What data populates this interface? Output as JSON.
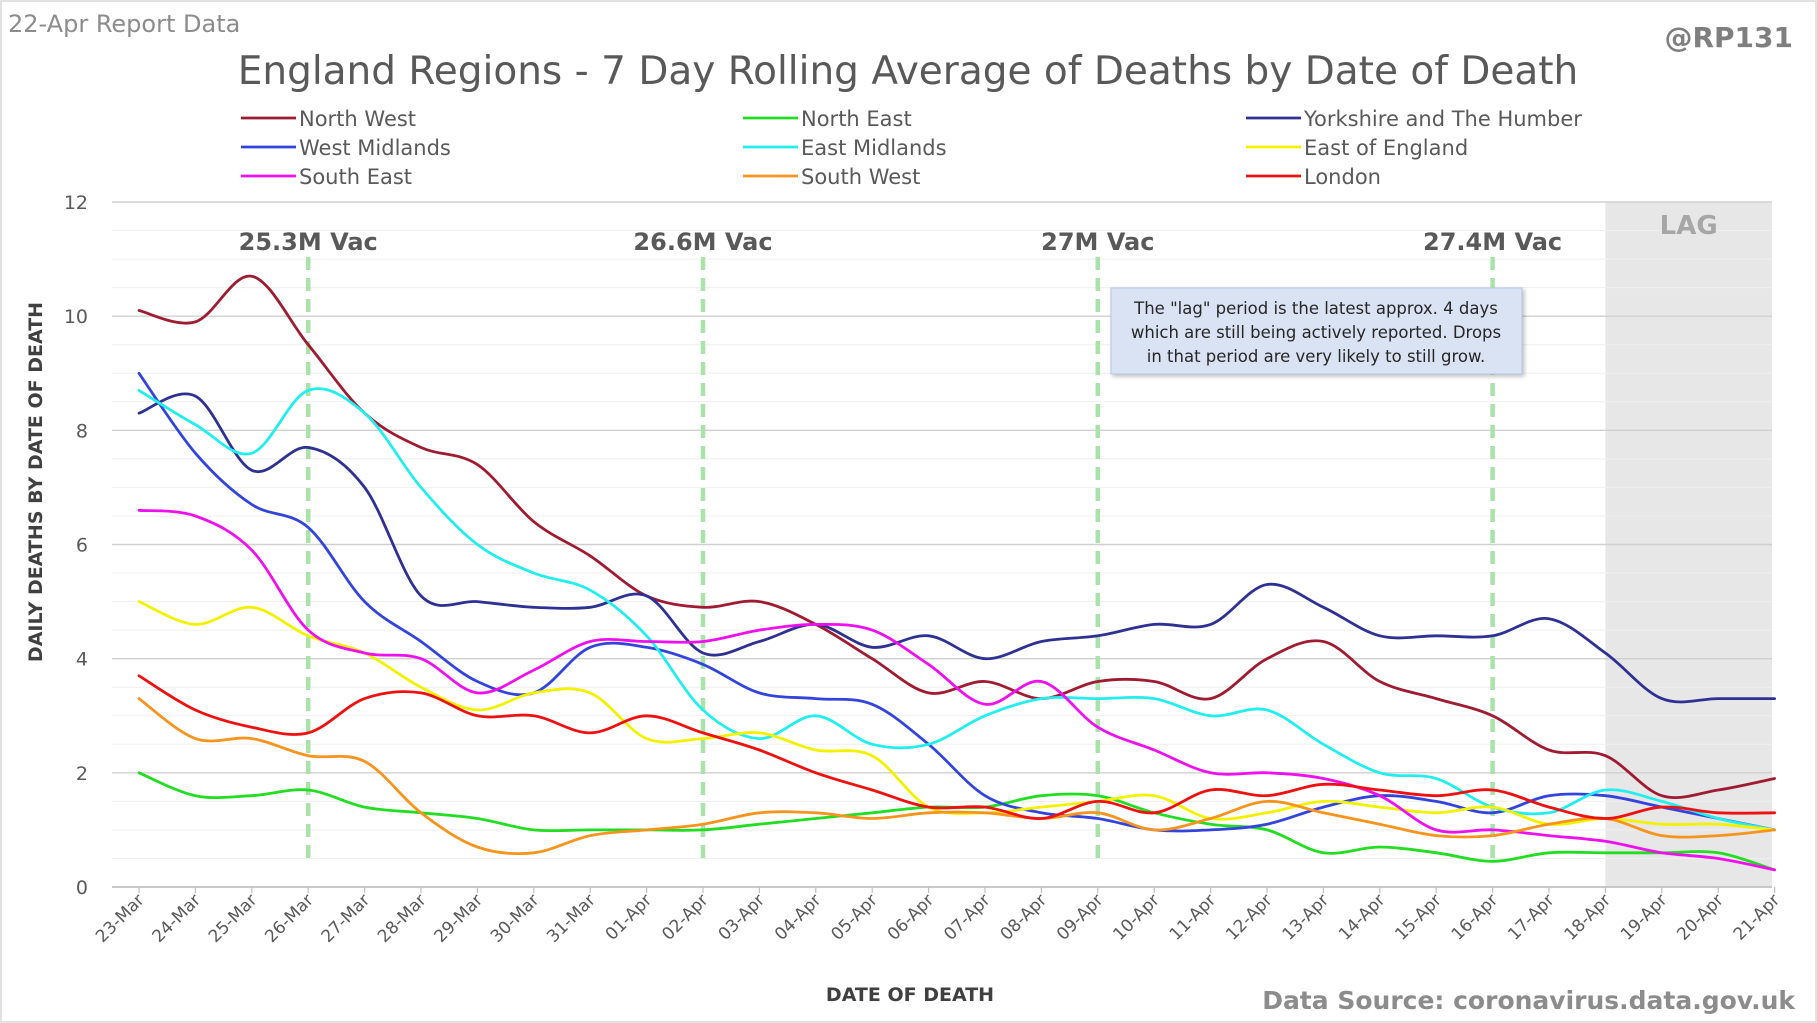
{
  "header": {
    "report_label": "22-Apr Report Data",
    "handle": "@RP131",
    "source": "Data Source: coronavirus.data.gov.uk"
  },
  "chart_data": {
    "type": "line",
    "title": "England Regions - 7 Day Rolling Average of Deaths by Date of Death",
    "xlabel": "DATE OF DEATH",
    "ylabel": "DAILY DEATHS BY DATE OF DEATH",
    "ylim": [
      0,
      12
    ],
    "yticks": [
      0,
      2,
      4,
      6,
      8,
      10,
      12
    ],
    "grid": true,
    "legend_position": "top",
    "categories": [
      "23-Mar",
      "24-Mar",
      "25-Mar",
      "26-Mar",
      "27-Mar",
      "28-Mar",
      "29-Mar",
      "30-Mar",
      "31-Mar",
      "01-Apr",
      "02-Apr",
      "03-Apr",
      "04-Apr",
      "05-Apr",
      "06-Apr",
      "07-Apr",
      "08-Apr",
      "09-Apr",
      "10-Apr",
      "11-Apr",
      "12-Apr",
      "13-Apr",
      "14-Apr",
      "15-Apr",
      "16-Apr",
      "17-Apr",
      "18-Apr",
      "19-Apr",
      "20-Apr",
      "21-Apr"
    ],
    "series": [
      {
        "name": "North West",
        "color": "#9e1b32",
        "values": [
          10.1,
          9.9,
          10.7,
          9.5,
          8.3,
          7.7,
          7.4,
          6.4,
          5.8,
          5.1,
          4.9,
          5.0,
          4.6,
          4.0,
          3.4,
          3.6,
          3.3,
          3.6,
          3.6,
          3.3,
          4.0,
          4.3,
          3.6,
          3.3,
          3.0,
          2.4,
          2.3,
          1.6,
          1.7,
          1.9
        ]
      },
      {
        "name": "North East",
        "color": "#22dd22",
        "values": [
          2.0,
          1.6,
          1.6,
          1.7,
          1.4,
          1.3,
          1.2,
          1.0,
          1.0,
          1.0,
          1.0,
          1.1,
          1.2,
          1.3,
          1.4,
          1.4,
          1.6,
          1.6,
          1.3,
          1.1,
          1.0,
          0.6,
          0.7,
          0.6,
          0.45,
          0.6,
          0.6,
          0.6,
          0.6,
          0.3
        ]
      },
      {
        "name": "Yorkshire and The Humber",
        "color": "#2e3192",
        "values": [
          8.3,
          8.6,
          7.3,
          7.7,
          7.0,
          5.1,
          5.0,
          4.9,
          4.9,
          5.1,
          4.1,
          4.3,
          4.6,
          4.2,
          4.4,
          4.0,
          4.3,
          4.4,
          4.6,
          4.6,
          5.3,
          4.9,
          4.4,
          4.4,
          4.4,
          4.7,
          4.1,
          3.3,
          3.3,
          3.3
        ]
      },
      {
        "name": "West Midlands",
        "color": "#3344dd",
        "values": [
          9.0,
          7.6,
          6.7,
          6.3,
          5.0,
          4.3,
          3.6,
          3.4,
          4.2,
          4.2,
          3.9,
          3.4,
          3.3,
          3.2,
          2.5,
          1.6,
          1.3,
          1.2,
          1.0,
          1.0,
          1.1,
          1.4,
          1.6,
          1.5,
          1.3,
          1.6,
          1.6,
          1.4,
          1.2,
          1.0
        ]
      },
      {
        "name": "East Midlands",
        "color": "#22eeee",
        "values": [
          8.7,
          8.1,
          7.6,
          8.7,
          8.3,
          7.0,
          6.0,
          5.5,
          5.2,
          4.4,
          3.1,
          2.6,
          3.0,
          2.5,
          2.5,
          3.0,
          3.3,
          3.3,
          3.3,
          3.0,
          3.1,
          2.5,
          2.0,
          1.9,
          1.4,
          1.3,
          1.7,
          1.5,
          1.2,
          1.0
        ]
      },
      {
        "name": "East of England",
        "color": "#f2f200",
        "values": [
          5.0,
          4.6,
          4.9,
          4.4,
          4.1,
          3.5,
          3.1,
          3.4,
          3.4,
          2.6,
          2.6,
          2.7,
          2.4,
          2.3,
          1.4,
          1.3,
          1.4,
          1.5,
          1.6,
          1.2,
          1.3,
          1.5,
          1.4,
          1.3,
          1.4,
          1.1,
          1.2,
          1.1,
          1.1,
          1.0
        ]
      },
      {
        "name": "South East",
        "color": "#ee11ee",
        "values": [
          6.6,
          6.5,
          5.9,
          4.5,
          4.1,
          4.0,
          3.4,
          3.8,
          4.3,
          4.3,
          4.3,
          4.5,
          4.6,
          4.5,
          3.9,
          3.2,
          3.6,
          2.8,
          2.4,
          2.0,
          2.0,
          1.9,
          1.6,
          1.0,
          1.0,
          0.9,
          0.8,
          0.6,
          0.5,
          0.3
        ]
      },
      {
        "name": "South West",
        "color": "#f7941d",
        "values": [
          3.3,
          2.6,
          2.6,
          2.3,
          2.2,
          1.3,
          0.7,
          0.6,
          0.9,
          1.0,
          1.1,
          1.3,
          1.3,
          1.2,
          1.3,
          1.3,
          1.2,
          1.3,
          1.0,
          1.2,
          1.5,
          1.3,
          1.1,
          0.9,
          0.9,
          1.1,
          1.2,
          0.9,
          0.9,
          1.0
        ]
      },
      {
        "name": "London",
        "color": "#ee1111",
        "values": [
          3.7,
          3.1,
          2.8,
          2.7,
          3.3,
          3.4,
          3.0,
          3.0,
          2.7,
          3.0,
          2.7,
          2.4,
          2.0,
          1.7,
          1.4,
          1.4,
          1.2,
          1.5,
          1.3,
          1.7,
          1.6,
          1.8,
          1.7,
          1.6,
          1.7,
          1.4,
          1.2,
          1.4,
          1.3,
          1.3
        ]
      }
    ],
    "vaccination_markers": [
      {
        "label": "25.3M Vac",
        "x": "26-Mar"
      },
      {
        "label": "26.6M Vac",
        "x": "02-Apr"
      },
      {
        "label": "27M Vac",
        "x": "09-Apr"
      },
      {
        "label": "27.4M Vac",
        "x": "16-Apr"
      }
    ],
    "lag": {
      "label": "LAG",
      "start": "18-Apr",
      "end": "21-Apr"
    },
    "annotation": {
      "lines": [
        "The \"lag\" period is the latest approx. 4 days",
        "which are still being actively reported.  Drops",
        "in that period are very likely to still grow."
      ]
    }
  }
}
